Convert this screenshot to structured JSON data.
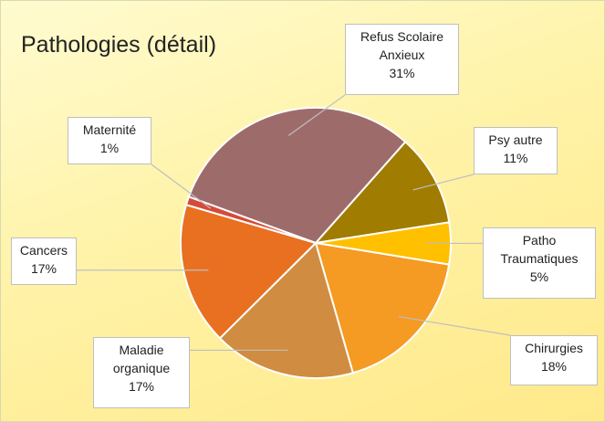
{
  "chart_data": {
    "type": "pie",
    "title": "Pathologies (détail)",
    "categories": [
      "Refus Scolaire Anxieux",
      "Psy autre",
      "Patho Traumatiques",
      "Chirurgies",
      "Maladie organique",
      "Cancers",
      "Maternité"
    ],
    "values": [
      31,
      11,
      5,
      18,
      17,
      17,
      1
    ],
    "value_labels": [
      "31%",
      "11%",
      "5%",
      "18%",
      "17%",
      "17%",
      "1%"
    ],
    "colors": [
      "#9e6b6b",
      "#a07c00",
      "#ffc000",
      "#f59a23",
      "#d08c40",
      "#e87020",
      "#d64a3a"
    ]
  }
}
